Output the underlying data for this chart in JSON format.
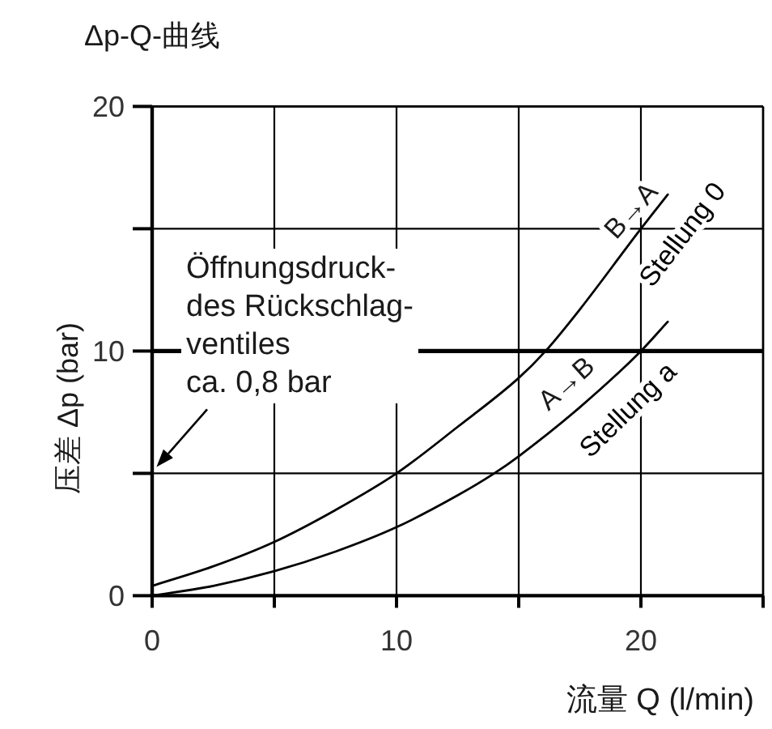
{
  "chart_data": {
    "type": "line",
    "title": "Δp-Q-曲线",
    "xlabel": "流量 Q (l/min)",
    "ylabel": "压差 Δp (bar)",
    "series": [
      {
        "name": "Stellung 0",
        "color": "#000000",
        "x": [
          0,
          2.5,
          5,
          7.5,
          10,
          12.5,
          15,
          16.1,
          17.5,
          20,
          21.1
        ],
        "values": [
          0.4,
          1.2,
          2.2,
          3.5,
          5,
          6.9,
          8.9,
          10,
          11.7,
          15,
          16.4
        ]
      },
      {
        "name": "Stellung a",
        "color": "#000000",
        "x": [
          0,
          2.5,
          5,
          7.5,
          10,
          12.5,
          14,
          15,
          17.5,
          20,
          21.1
        ],
        "values": [
          0,
          0.4,
          1,
          1.8,
          2.8,
          4.1,
          5,
          5.7,
          7.7,
          10,
          11.2
        ]
      }
    ],
    "xlim": [
      0,
      25
    ],
    "xticks": [
      0,
      {
        "value": 5,
        "label": null
      },
      10,
      {
        "value": 15,
        "label": null
      },
      20,
      {
        "value": 25,
        "label": null
      }
    ],
    "ylim": [
      0,
      20
    ],
    "yticks": [
      0,
      {
        "value": 5,
        "label": null
      },
      10,
      {
        "value": 15,
        "label": null
      },
      20
    ],
    "grid": true,
    "ref_lines": [
      {
        "axis": "y",
        "value": 10
      }
    ],
    "annotations": [
      "Öffnungsdruck-\ndes Rückschlag-\nventiles\nca. 0,8 bar",
      "B→A",
      "A→B"
    ]
  }
}
